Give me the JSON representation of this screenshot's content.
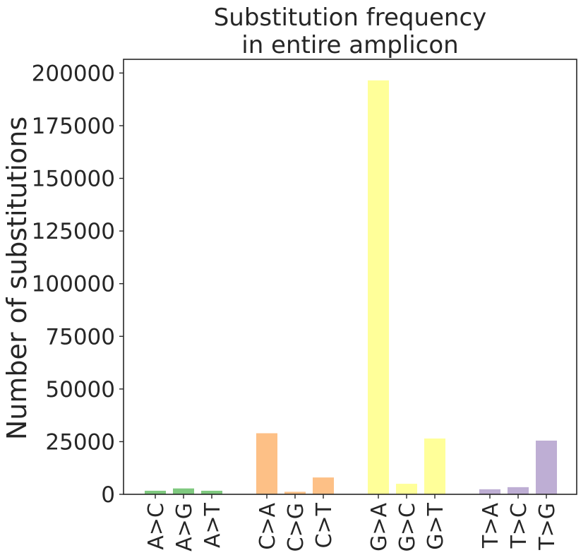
{
  "chart_data": {
    "type": "bar",
    "title": [
      "Substitution frequency",
      "in entire amplicon"
    ],
    "xlabel": "",
    "ylabel": "Number of substitutions",
    "ylim": [
      0,
      206500
    ],
    "yticks": [
      0,
      25000,
      50000,
      75000,
      100000,
      125000,
      150000,
      175000,
      200000
    ],
    "grid": false,
    "groups": [
      {
        "color": "#7fc97f",
        "categories": [
          "A>C",
          "A>G",
          "A>T"
        ],
        "values": [
          1700,
          2800,
          1700
        ]
      },
      {
        "color": "#fdc086",
        "categories": [
          "C>A",
          "C>G",
          "C>T"
        ],
        "values": [
          29000,
          1200,
          8000
        ]
      },
      {
        "color": "#ffff99",
        "categories": [
          "G>A",
          "G>C",
          "G>T"
        ],
        "values": [
          196500,
          5000,
          26500
        ]
      },
      {
        "color": "#beaed4",
        "categories": [
          "T>A",
          "T>C",
          "T>G"
        ],
        "values": [
          2400,
          3400,
          25500
        ]
      }
    ]
  }
}
